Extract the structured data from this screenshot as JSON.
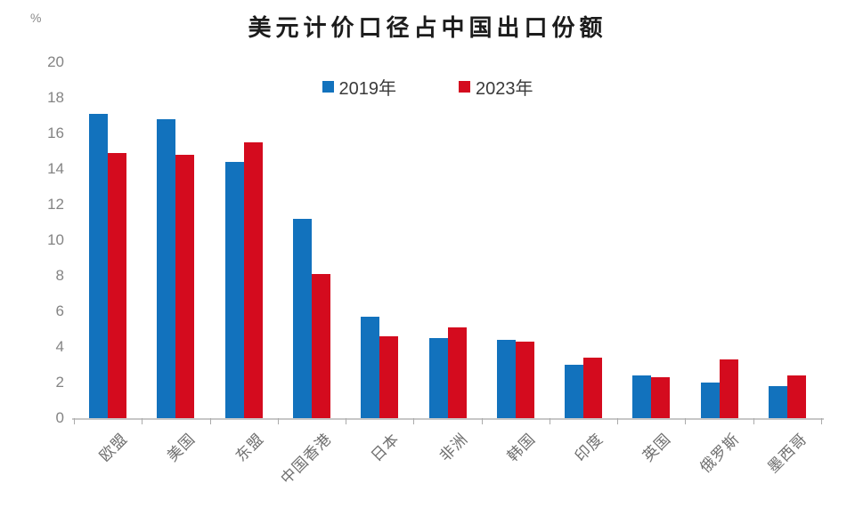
{
  "page": {
    "background": "#ffffff"
  },
  "chart_data": {
    "type": "bar",
    "title": "美元计价口径占中国出口份额",
    "y_unit_label": "%",
    "categories": [
      "欧盟",
      "美国",
      "东盟",
      "中国香港",
      "日本",
      "非洲",
      "韩国",
      "印度",
      "英国",
      "俄罗斯",
      "墨西哥"
    ],
    "series": [
      {
        "name": "2019年",
        "color": "#1272bd",
        "values": [
          17.1,
          16.8,
          14.4,
          11.2,
          5.7,
          4.5,
          4.4,
          3.0,
          2.4,
          2.0,
          1.8
        ]
      },
      {
        "name": "2023年",
        "color": "#d40b1e",
        "values": [
          14.9,
          14.8,
          15.5,
          8.1,
          4.6,
          5.1,
          4.3,
          3.4,
          2.3,
          3.3,
          2.4
        ]
      }
    ],
    "ylim": [
      0,
      20
    ],
    "ytick_step": 2,
    "ytick_labels": [
      "0",
      "2",
      "4",
      "6",
      "8",
      "10",
      "12",
      "14",
      "16",
      "18",
      "20"
    ],
    "legend_position": "top-center",
    "grid": false,
    "colors": {
      "axis_line": "#c7c7c7",
      "axis_tick": "#ababab",
      "ytick_label": "#848484",
      "category_label": "#6f6f6f",
      "legend_text": "#3a3a3a",
      "title_text": "#1c1c1c"
    }
  }
}
